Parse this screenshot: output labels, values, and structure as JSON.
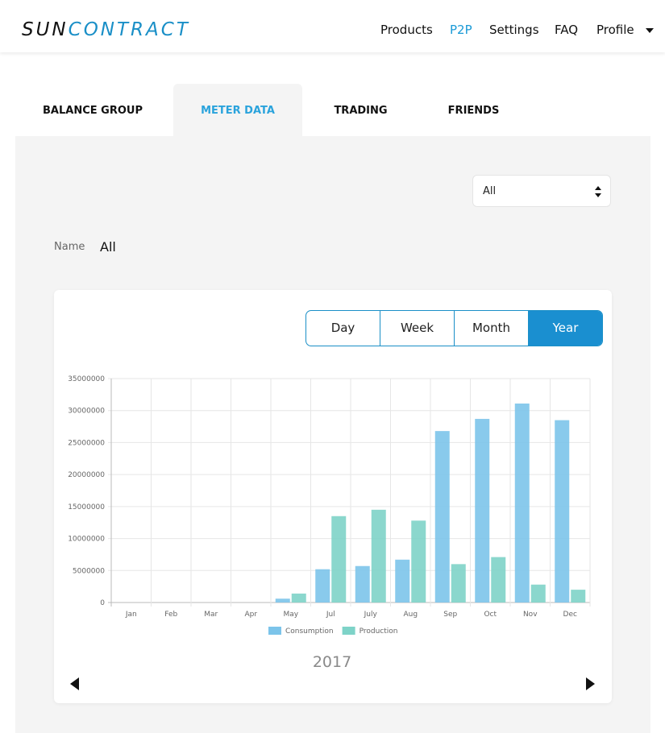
{
  "header": {
    "logo": [
      "SUN",
      "CONTRACT"
    ],
    "nav": [
      "Products",
      "P2P",
      "Settings",
      "FAQ",
      "Profile"
    ]
  },
  "tabs": [
    "BALANCE GROUP",
    "METER DATA",
    "TRADING",
    "FRIENDS"
  ],
  "filter": {
    "selected": "All"
  },
  "name": {
    "label": "Name",
    "value": "All"
  },
  "range_buttons": [
    "Day",
    "Week",
    "Month",
    "Year"
  ],
  "chart_data": {
    "type": "bar",
    "categories": [
      "Jan",
      "Feb",
      "Mar",
      "Apr",
      "May",
      "Jul",
      "July",
      "Aug",
      "Sep",
      "Oct",
      "Nov",
      "Dec"
    ],
    "series": [
      {
        "name": "Consumption",
        "color": "#7cc4ea",
        "values": [
          0,
          0,
          0,
          0,
          600000,
          5200000,
          5700000,
          6700000,
          26800000,
          28700000,
          31100000,
          28500000
        ]
      },
      {
        "name": "Production",
        "color": "#7ed3c8",
        "values": [
          0,
          0,
          0,
          0,
          1400000,
          13500000,
          14500000,
          12800000,
          6000000,
          7100000,
          2800000,
          2000000
        ]
      }
    ],
    "ylim": [
      0,
      35000000
    ],
    "yticks": [
      0,
      5000000,
      10000000,
      15000000,
      20000000,
      25000000,
      30000000,
      35000000
    ],
    "grid": true,
    "legend": "bottom",
    "period": "2017"
  }
}
